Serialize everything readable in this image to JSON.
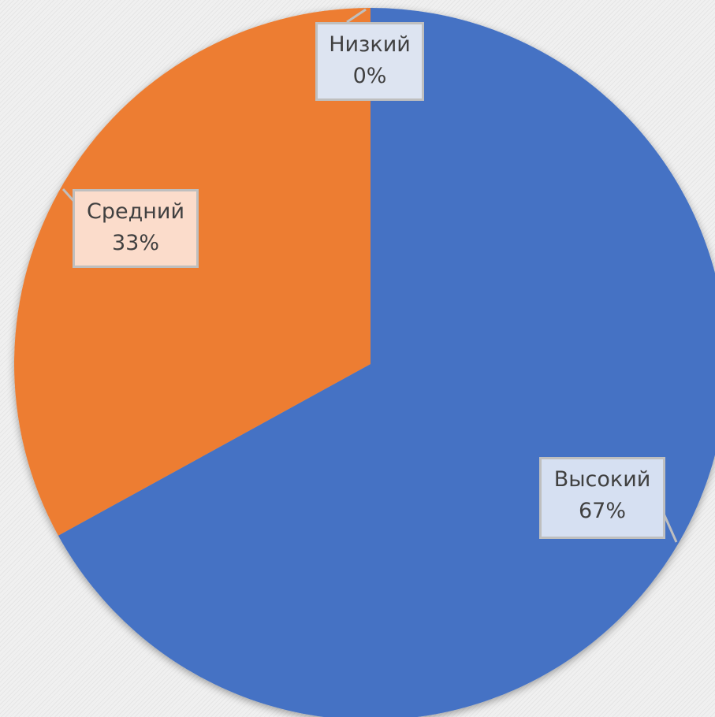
{
  "chart_data": {
    "type": "pie",
    "categories": [
      "Высокий",
      "Средний",
      "Низкий"
    ],
    "values": [
      67,
      33,
      0
    ],
    "colors": [
      "#4472c4",
      "#ed7d31",
      "#a5a5a5"
    ],
    "data_labels": [
      {
        "category": "Высокий",
        "percent": "67%",
        "bg": "#d6e0f2"
      },
      {
        "category": "Средний",
        "percent": "33%",
        "bg": "#fbdccb"
      },
      {
        "category": "Низкий",
        "percent": "0%",
        "bg": "#dde4f1"
      }
    ],
    "start_angle": "12 o'clock",
    "direction": "clockwise",
    "legend": "none"
  }
}
